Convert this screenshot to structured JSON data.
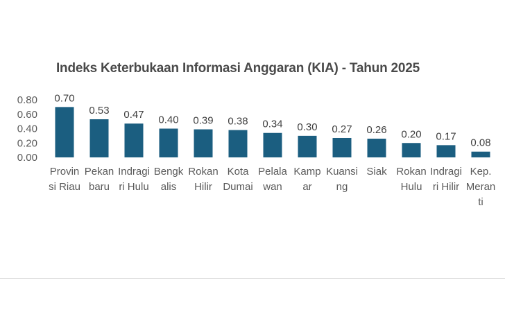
{
  "chart_data": {
    "type": "bar",
    "title": "Indeks Keterbukaan Informasi Anggaran (KIA) - Tahun 2025",
    "xlabel": "",
    "ylabel": "",
    "ylim": [
      0,
      0.8
    ],
    "y_ticks": [
      "0.00",
      "0.20",
      "0.40",
      "0.60",
      "0.80"
    ],
    "grid": false,
    "legend": "none",
    "bar_color": "#1b5e80",
    "categories": [
      [
        "Provin",
        "si Riau"
      ],
      [
        "Pekan",
        "baru"
      ],
      [
        "Indragi",
        "ri Hulu"
      ],
      [
        "Bengk",
        "alis"
      ],
      [
        "Rokan",
        "Hilir"
      ],
      [
        "Kota",
        "Dumai"
      ],
      [
        "Pelala",
        "wan"
      ],
      [
        "Kamp",
        "ar"
      ],
      [
        "Kuansi",
        "ng"
      ],
      [
        "Siak"
      ],
      [
        "Rokan",
        "Hulu"
      ],
      [
        "Indragi",
        "ri Hilir"
      ],
      [
        "Kep.",
        "Meran",
        "ti"
      ]
    ],
    "values": [
      0.7,
      0.53,
      0.47,
      0.4,
      0.39,
      0.38,
      0.34,
      0.3,
      0.27,
      0.26,
      0.2,
      0.17,
      0.08
    ],
    "value_labels": [
      "0.70",
      "0.53",
      "0.47",
      "0.40",
      "0.39",
      "0.38",
      "0.34",
      "0.30",
      "0.27",
      "0.26",
      "0.20",
      "0.17",
      "0.08"
    ]
  }
}
